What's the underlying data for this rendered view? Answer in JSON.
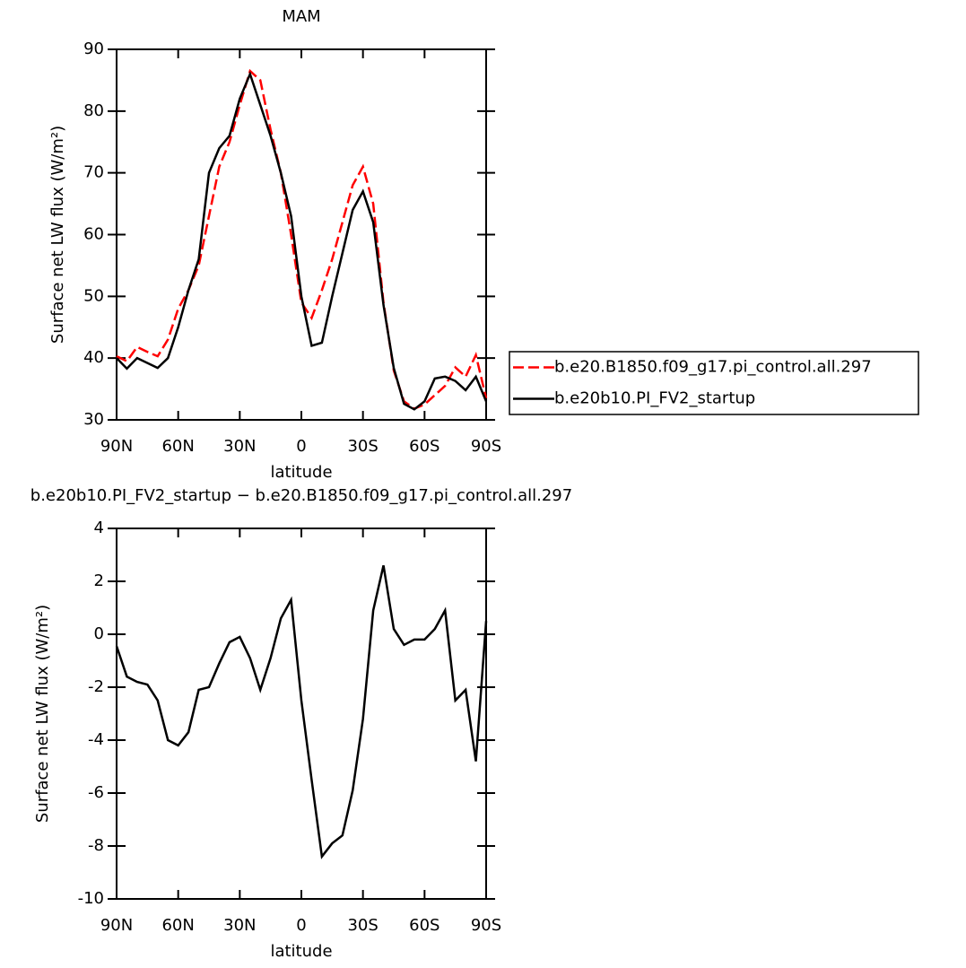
{
  "chart_data": [
    {
      "type": "line",
      "title": "MAM",
      "xlabel": "latitude",
      "ylabel": "Surface net LW flux (W/m²)",
      "x": [
        90,
        85,
        80,
        75,
        70,
        65,
        60,
        55,
        50,
        45,
        40,
        35,
        30,
        25,
        20,
        15,
        10,
        5,
        0,
        -5,
        -10,
        -15,
        -20,
        -25,
        -30,
        -35,
        -40,
        -45,
        -50,
        -55,
        -60,
        -65,
        -70,
        -75,
        -80,
        -85,
        -90
      ],
      "series": [
        {
          "name": "b.e20.B1850.f09_g17.pi_control.all.297",
          "color": "#ff0000",
          "dash": true,
          "values": [
            40.3,
            39.5,
            41.8,
            41,
            40.3,
            43,
            48,
            51,
            55,
            63,
            71,
            75,
            81,
            86.5,
            85,
            77,
            70,
            60,
            49,
            46.5,
            51,
            56,
            62,
            68,
            71,
            65,
            49,
            38,
            33,
            31.8,
            32.5,
            34,
            35.5,
            38.5,
            37,
            40.5,
            33.5
          ]
        },
        {
          "name": "b.e20b10.PI_FV2_startup",
          "color": "#000000",
          "dash": false,
          "values": [
            40,
            38.3,
            40,
            39.2,
            38.4,
            40,
            45,
            51,
            56,
            70,
            74,
            76,
            82,
            86,
            81,
            76,
            70,
            63,
            50,
            42,
            42.5,
            50,
            57,
            64,
            67,
            62,
            48.6,
            38.4,
            32.6,
            31.7,
            33,
            36.7,
            37,
            36.3,
            34.8,
            37,
            33
          ]
        }
      ],
      "xlim": [
        90,
        -90
      ],
      "xticks": [
        {
          "value": 90,
          "label": "90N"
        },
        {
          "value": 60,
          "label": "60N"
        },
        {
          "value": 30,
          "label": "30N"
        },
        0,
        {
          "value": -30,
          "label": "30S"
        },
        {
          "value": -60,
          "label": "60S"
        },
        {
          "value": -90,
          "label": "90S"
        }
      ],
      "ylim": [
        30,
        90
      ],
      "yticks": [
        30,
        40,
        50,
        60,
        70,
        80,
        90
      ],
      "legend": "right"
    },
    {
      "type": "line",
      "title": "b.e20b10.PI_FV2_startup − b.e20.B1850.f09_g17.pi_control.all.297",
      "xlabel": "latitude",
      "ylabel": "Surface net LW flux (W/m²)",
      "x": [
        90,
        85,
        80,
        75,
        70,
        65,
        60,
        55,
        50,
        45,
        40,
        35,
        30,
        25,
        20,
        15,
        10,
        5,
        0,
        -5,
        -10,
        -15,
        -20,
        -25,
        -30,
        -35,
        -40,
        -45,
        -50,
        -55,
        -60,
        -65,
        -70,
        -75,
        -80,
        -85,
        -90
      ],
      "series": [
        {
          "color": "#000000",
          "dash": false,
          "values": [
            -0.45,
            -1.6,
            -1.8,
            -1.9,
            -2.5,
            -4.0,
            -4.2,
            -3.7,
            -2.1,
            -2.0,
            -1.1,
            -0.3,
            -0.1,
            -0.9,
            -2.1,
            -0.9,
            0.6,
            1.3,
            -2.5,
            -5.5,
            -8.4,
            -7.9,
            -7.6,
            -5.9,
            -3.2,
            0.9,
            2.6,
            0.2,
            -0.4,
            -0.2,
            -0.2,
            0.2,
            0.9,
            -2.5,
            -2.1,
            -4.8,
            0.5
          ]
        }
      ],
      "xlim": [
        90,
        -90
      ],
      "xticks": [
        {
          "value": 90,
          "label": "90N"
        },
        {
          "value": 60,
          "label": "60N"
        },
        {
          "value": 30,
          "label": "30N"
        },
        0,
        {
          "value": -30,
          "label": "30S"
        },
        {
          "value": -60,
          "label": "60S"
        },
        {
          "value": -90,
          "label": "90S"
        }
      ],
      "ylim": [
        -10,
        4
      ],
      "yticks": [
        -10,
        -8,
        -6,
        -4,
        -2,
        0,
        2,
        4
      ]
    }
  ]
}
